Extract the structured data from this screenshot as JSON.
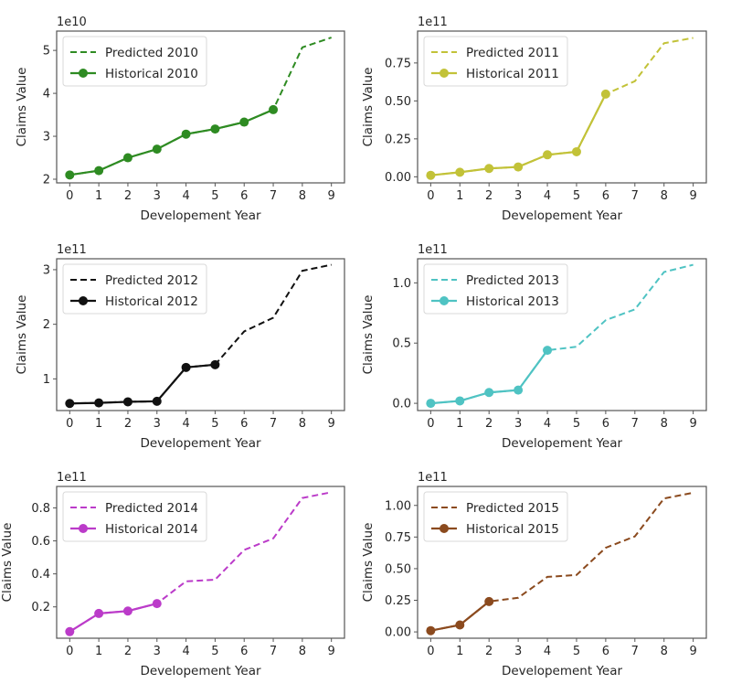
{
  "chart_data": [
    {
      "type": "line",
      "title": "",
      "xlabel": "Developement Year",
      "ylabel": "Claims Value",
      "offset_text": "1e10",
      "color": "#2e8b22",
      "x": [
        0,
        1,
        2,
        3,
        4,
        5,
        6,
        7,
        8,
        9
      ],
      "xticks": [
        "0",
        "1",
        "2",
        "3",
        "4",
        "5",
        "6",
        "7",
        "8",
        "9"
      ],
      "yticks": [
        2,
        3,
        4,
        5
      ],
      "ytick_labels": [
        "2",
        "3",
        "4",
        "5"
      ],
      "ylim": [
        1.915,
        5.45
      ],
      "legend": "top-left",
      "series": [
        {
          "name": "Predicted 2010",
          "style": "dashed",
          "values": [
            2.1,
            2.2,
            2.5,
            2.7,
            3.05,
            3.17,
            3.33,
            3.62,
            5.07,
            5.3
          ]
        },
        {
          "name": "Historical 2010",
          "style": "solid-marker",
          "values": [
            2.1,
            2.2,
            2.5,
            2.7,
            3.05,
            3.17,
            3.33,
            3.62
          ]
        }
      ]
    },
    {
      "type": "line",
      "title": "",
      "xlabel": "Developement Year",
      "ylabel": "Claims Value",
      "offset_text": "1e11",
      "color": "#c2c238",
      "x": [
        0,
        1,
        2,
        3,
        4,
        5,
        6,
        7,
        8,
        9
      ],
      "xticks": [
        "0",
        "1",
        "2",
        "3",
        "4",
        "5",
        "6",
        "7",
        "8",
        "9"
      ],
      "yticks": [
        0.0,
        0.25,
        0.5,
        0.75
      ],
      "ytick_labels": [
        "0.00",
        "0.25",
        "0.50",
        "0.75"
      ],
      "ylim": [
        -0.04,
        0.96
      ],
      "legend": "top-left",
      "series": [
        {
          "name": "Predicted 2011",
          "style": "dashed",
          "values": [
            0.01,
            0.03,
            0.055,
            0.065,
            0.145,
            0.165,
            0.545,
            0.63,
            0.88,
            0.915
          ]
        },
        {
          "name": "Historical 2011",
          "style": "solid-marker",
          "values": [
            0.01,
            0.03,
            0.055,
            0.065,
            0.145,
            0.165,
            0.545
          ]
        }
      ]
    },
    {
      "type": "line",
      "title": "",
      "xlabel": "Developement Year",
      "ylabel": "Claims Value",
      "offset_text": "1e11",
      "color": "#111111",
      "x": [
        0,
        1,
        2,
        3,
        4,
        5,
        6,
        7,
        8,
        9
      ],
      "xticks": [
        "0",
        "1",
        "2",
        "3",
        "4",
        "5",
        "6",
        "7",
        "8",
        "9"
      ],
      "yticks": [
        1,
        2,
        3
      ],
      "ytick_labels": [
        "1",
        "2",
        "3"
      ],
      "ylim": [
        0.42,
        3.2
      ],
      "legend": "top-left",
      "series": [
        {
          "name": "Predicted 2012",
          "style": "dashed",
          "values": [
            0.55,
            0.56,
            0.58,
            0.59,
            1.21,
            1.26,
            1.87,
            2.12,
            2.98,
            3.09
          ]
        },
        {
          "name": "Historical 2012",
          "style": "solid-marker",
          "values": [
            0.55,
            0.56,
            0.58,
            0.59,
            1.21,
            1.26
          ]
        }
      ]
    },
    {
      "type": "line",
      "title": "",
      "xlabel": "Developement Year",
      "ylabel": "Claims Value",
      "offset_text": "1e11",
      "color": "#4fc3c3",
      "x": [
        0,
        1,
        2,
        3,
        4,
        5,
        6,
        7,
        8,
        9
      ],
      "xticks": [
        "0",
        "1",
        "2",
        "3",
        "4",
        "5",
        "6",
        "7",
        "8",
        "9"
      ],
      "yticks": [
        0.0,
        0.5,
        1.0
      ],
      "ytick_labels": [
        "0.0",
        "0.5",
        "1.0"
      ],
      "ylim": [
        -0.06,
        1.2
      ],
      "legend": "top-left",
      "series": [
        {
          "name": "Predicted 2013",
          "style": "dashed",
          "values": [
            0.0,
            0.02,
            0.09,
            0.11,
            0.44,
            0.47,
            0.69,
            0.78,
            1.09,
            1.15
          ]
        },
        {
          "name": "Historical 2013",
          "style": "solid-marker",
          "values": [
            0.0,
            0.02,
            0.09,
            0.11,
            0.44
          ]
        }
      ]
    },
    {
      "type": "line",
      "title": "",
      "xlabel": "Developement Year",
      "ylabel": "Claims Value",
      "offset_text": "1e11",
      "color": "#bb3bc9",
      "x": [
        0,
        1,
        2,
        3,
        4,
        5,
        6,
        7,
        8,
        9
      ],
      "xticks": [
        "0",
        "1",
        "2",
        "3",
        "4",
        "5",
        "6",
        "7",
        "8",
        "9"
      ],
      "yticks": [
        0.2,
        0.4,
        0.6,
        0.8
      ],
      "ytick_labels": [
        "0.2",
        "0.4",
        "0.6",
        "0.8"
      ],
      "ylim": [
        0.01,
        0.93
      ],
      "legend": "top-left",
      "series": [
        {
          "name": "Predicted 2014",
          "style": "dashed",
          "values": [
            0.05,
            0.16,
            0.175,
            0.22,
            0.355,
            0.365,
            0.545,
            0.615,
            0.86,
            0.895
          ]
        },
        {
          "name": "Historical 2014",
          "style": "solid-marker",
          "values": [
            0.05,
            0.16,
            0.175,
            0.22
          ]
        }
      ]
    },
    {
      "type": "line",
      "title": "",
      "xlabel": "Developement Year",
      "ylabel": "Claims Value",
      "offset_text": "1e11",
      "color": "#8b4a1e",
      "x": [
        0,
        1,
        2,
        3,
        4,
        5,
        6,
        7,
        8,
        9
      ],
      "xticks": [
        "0",
        "1",
        "2",
        "3",
        "4",
        "5",
        "6",
        "7",
        "8",
        "9"
      ],
      "yticks": [
        0.0,
        0.25,
        0.5,
        0.75,
        1.0
      ],
      "ytick_labels": [
        "0.00",
        "0.25",
        "0.50",
        "0.75",
        "1.00"
      ],
      "ylim": [
        -0.05,
        1.15
      ],
      "legend": "top-left",
      "series": [
        {
          "name": "Predicted 2015",
          "style": "dashed",
          "values": [
            0.01,
            0.055,
            0.24,
            0.27,
            0.435,
            0.45,
            0.665,
            0.755,
            1.055,
            1.1
          ]
        },
        {
          "name": "Historical 2015",
          "style": "solid-marker",
          "values": [
            0.01,
            0.055,
            0.24
          ]
        }
      ]
    }
  ]
}
